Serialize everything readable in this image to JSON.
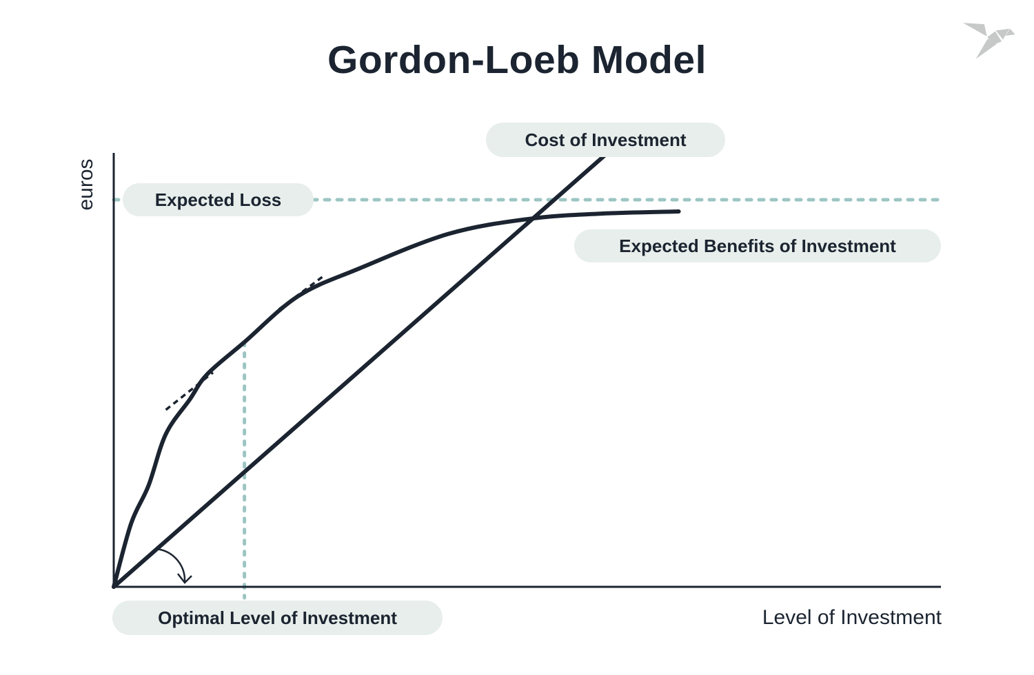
{
  "colors": {
    "ink": "#1b2430",
    "accent": "#9cc5c2",
    "pill_bg": "#e8eeeb",
    "logo_gray": "#c6c9c8"
  },
  "header": {
    "title": "Gordon-Loeb Model",
    "logo_icon": "origami-bird-icon"
  },
  "axes": {
    "y_label": "euros",
    "x_label": "Level of Investment"
  },
  "annotations": {
    "cost_label": "Cost of Investment",
    "expected_loss_label": "Expected Loss",
    "benefits_label": "Expected Benefits of Investment",
    "optimal_label": "Optimal Level of Investment"
  },
  "chart_data": {
    "type": "line",
    "title": "Gordon-Loeb Model",
    "xlabel": "Level of Investment",
    "ylabel": "euros",
    "grid": false,
    "legend_position": "none",
    "axis_units": "qualitative axes without numeric ticks; point coordinates are relative units 0-100",
    "series": [
      {
        "name": "Expected Benefits of Investment",
        "style": "solid-curve",
        "points": [
          [
            0,
            0
          ],
          [
            2.1,
            14.6
          ],
          [
            4.2,
            23.3
          ],
          [
            6.3,
            35.2
          ],
          [
            9.2,
            43.2
          ],
          [
            11.3,
            49
          ],
          [
            15.8,
            56.4
          ],
          [
            22.3,
            67
          ],
          [
            29.6,
            73.3
          ],
          [
            40.4,
            81.3
          ],
          [
            50.2,
            84.8
          ],
          [
            58.8,
            86
          ],
          [
            68.3,
            86.5
          ]
        ]
      },
      {
        "name": "Cost of Investment",
        "style": "solid-line",
        "points": [
          [
            0,
            0
          ],
          [
            59.4,
            99.5
          ]
        ]
      },
      {
        "name": "Expected Loss",
        "style": "dotted-horizontal",
        "y": 89.2,
        "x_range": [
          0,
          100
        ]
      },
      {
        "name": "Optimal Level of Investment",
        "style": "dotted-vertical",
        "x": 15.8,
        "y_range": [
          0,
          56.4
        ]
      },
      {
        "name": "marginal-benefit-tangents",
        "style": "dashed-segments",
        "segments": [
          [
            [
              6.3,
              40.8
            ],
            [
              12,
              49.4
            ]
          ],
          [
            [
              20,
              64
            ],
            [
              25.2,
              71.4
            ]
          ]
        ]
      }
    ]
  }
}
